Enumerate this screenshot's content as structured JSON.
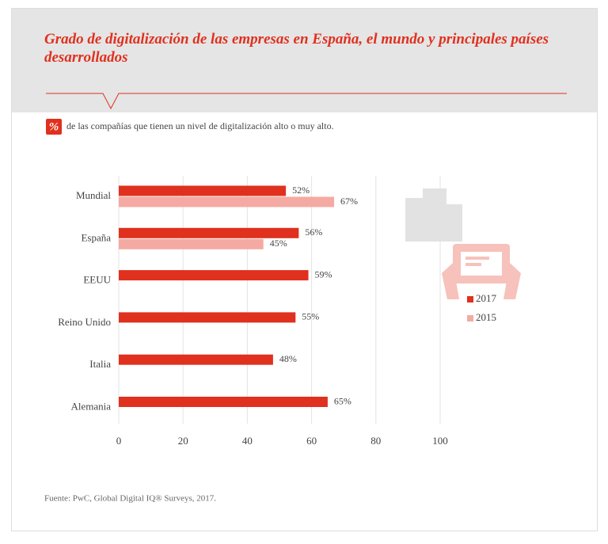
{
  "chart_data": {
    "type": "bar",
    "orientation": "horizontal",
    "title": "Grado de digitalización de las empresas en España, el mundo y principales países desarrollados",
    "subtitle_icon": "%",
    "subtitle": "de las compañías que tienen un nivel de digitalización alto o muy alto.",
    "source": "Fuente:  PwC, Global Digital IQ® Surveys, 2017.",
    "categories": [
      "Mundial",
      "España",
      "EEUU",
      "Reino Unido",
      "Italia",
      "Alemania"
    ],
    "series": [
      {
        "name": "2017",
        "color": "#e0301e",
        "values": [
          52,
          56,
          59,
          55,
          48,
          65
        ],
        "value_labels": [
          "52%",
          "56%",
          "59%",
          "55%",
          "48%",
          "65%"
        ]
      },
      {
        "name": "2015",
        "color": "#f4aaa2",
        "values": [
          67,
          45,
          null,
          null,
          null,
          null
        ],
        "value_labels": [
          "67%",
          "45%",
          null,
          null,
          null,
          null
        ]
      }
    ],
    "xlim": [
      0,
      100
    ],
    "xticks": [
      0,
      20,
      40,
      60,
      80,
      100
    ],
    "grid": true
  }
}
